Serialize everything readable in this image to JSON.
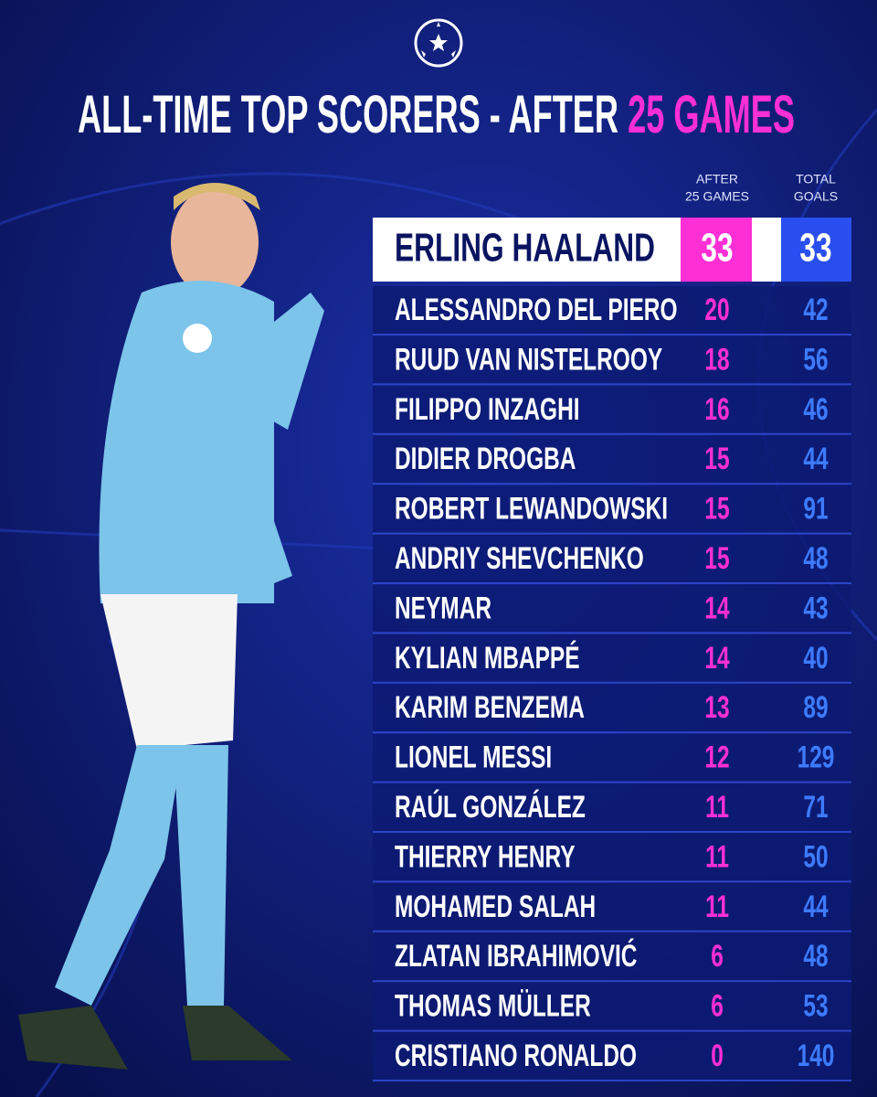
{
  "header": {
    "title": "ALL-TIME TOP SCORERS - AFTER",
    "title_highlight": "25 GAMES"
  },
  "table": {
    "columns": [
      [
        "AFTER",
        "25 GAMES"
      ],
      [
        "TOTAL",
        "GOALS"
      ]
    ],
    "rows": [
      [
        "ERLING HAALAND",
        33,
        33
      ],
      [
        "ALESSANDRO DEL PIERO",
        20,
        42
      ],
      [
        "RUUD VAN NISTELROOY",
        18,
        56
      ],
      [
        "FILIPPO INZAGHI",
        16,
        46
      ],
      [
        "DIDIER DROGBA",
        15,
        44
      ],
      [
        "ROBERT LEWANDOWSKI",
        15,
        91
      ],
      [
        "ANDRIY SHEVCHENKO",
        15,
        48
      ],
      [
        "NEYMAR",
        14,
        43
      ],
      [
        "KYLIAN MBAPPÉ",
        14,
        40
      ],
      [
        "KARIM BENZEMA",
        13,
        89
      ],
      [
        "LIONEL MESSI",
        12,
        129
      ],
      [
        "RAÚL GONZÁLEZ",
        11,
        71
      ],
      [
        "THIERRY HENRY",
        11,
        50
      ],
      [
        "MOHAMED SALAH",
        11,
        44
      ],
      [
        "ZLATAN IBRAHIMOVIĆ",
        6,
        48
      ],
      [
        "THOMAS MÜLLER",
        6,
        53
      ],
      [
        "CRISTIANO RONALDO",
        0,
        140
      ]
    ]
  }
}
